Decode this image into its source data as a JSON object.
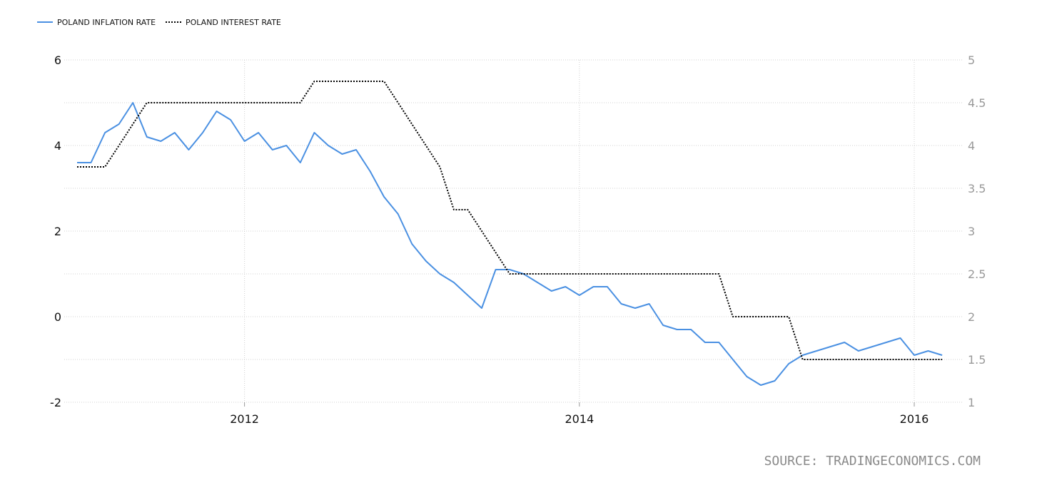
{
  "chart_data": {
    "type": "line",
    "legend_position": "top-left",
    "grid": true,
    "source": "SOURCE: TRADINGECONOMICS.COM",
    "x_ticks": [
      "2012",
      "2014",
      "2016"
    ],
    "left_axis": {
      "range": [
        -2,
        6
      ],
      "ticks": [
        "6",
        "4",
        "2",
        "0",
        "-2"
      ]
    },
    "right_axis": {
      "range": [
        1,
        5
      ],
      "ticks": [
        "5",
        "4.5",
        "4",
        "3.5",
        "3",
        "2.5",
        "2",
        "1.5",
        "1"
      ]
    },
    "series": [
      {
        "name": "POLAND INFLATION RATE",
        "axis": "left",
        "color": "#4a90e2",
        "style": "solid",
        "x": [
          "2011-01",
          "2011-02",
          "2011-03",
          "2011-04",
          "2011-05",
          "2011-06",
          "2011-07",
          "2011-08",
          "2011-09",
          "2011-10",
          "2011-11",
          "2011-12",
          "2012-01",
          "2012-02",
          "2012-03",
          "2012-04",
          "2012-05",
          "2012-06",
          "2012-07",
          "2012-08",
          "2012-09",
          "2012-10",
          "2012-11",
          "2012-12",
          "2013-01",
          "2013-02",
          "2013-03",
          "2013-04",
          "2013-05",
          "2013-06",
          "2013-07",
          "2013-08",
          "2013-09",
          "2013-10",
          "2013-11",
          "2013-12",
          "2014-01",
          "2014-02",
          "2014-03",
          "2014-04",
          "2014-05",
          "2014-06",
          "2014-07",
          "2014-08",
          "2014-09",
          "2014-10",
          "2014-11",
          "2014-12",
          "2015-01",
          "2015-02",
          "2015-03",
          "2015-04",
          "2015-05",
          "2015-06",
          "2015-07",
          "2015-08",
          "2015-09",
          "2015-10",
          "2015-11",
          "2015-12",
          "2016-01",
          "2016-02",
          "2016-03"
        ],
        "values": [
          3.6,
          3.6,
          4.3,
          4.5,
          5.0,
          4.2,
          4.1,
          4.3,
          3.9,
          4.3,
          4.8,
          4.6,
          4.1,
          4.3,
          3.9,
          4.0,
          3.6,
          4.3,
          4.0,
          3.8,
          3.9,
          3.4,
          2.8,
          2.4,
          1.7,
          1.3,
          1.0,
          0.8,
          0.5,
          0.2,
          1.1,
          1.1,
          1.0,
          0.8,
          0.6,
          0.7,
          0.5,
          0.7,
          0.7,
          0.3,
          0.2,
          0.3,
          -0.2,
          -0.3,
          -0.3,
          -0.6,
          -0.6,
          -1.0,
          -1.4,
          -1.6,
          -1.5,
          -1.1,
          -0.9,
          -0.8,
          -0.7,
          -0.6,
          -0.8,
          -0.7,
          -0.6,
          -0.5,
          -0.9,
          -0.8,
          -0.9
        ]
      },
      {
        "name": "POLAND INTEREST RATE",
        "axis": "right",
        "color": "#000000",
        "style": "dotted",
        "x": [
          "2011-01",
          "2011-02",
          "2011-03",
          "2011-04",
          "2011-05",
          "2011-06",
          "2011-07",
          "2011-08",
          "2011-09",
          "2011-10",
          "2011-11",
          "2011-12",
          "2012-01",
          "2012-02",
          "2012-03",
          "2012-04",
          "2012-05",
          "2012-06",
          "2012-07",
          "2012-08",
          "2012-09",
          "2012-10",
          "2012-11",
          "2012-12",
          "2013-01",
          "2013-02",
          "2013-03",
          "2013-04",
          "2013-05",
          "2013-06",
          "2013-07",
          "2013-08",
          "2013-09",
          "2013-10",
          "2013-11",
          "2013-12",
          "2014-01",
          "2014-02",
          "2014-03",
          "2014-04",
          "2014-05",
          "2014-06",
          "2014-07",
          "2014-08",
          "2014-09",
          "2014-10",
          "2014-11",
          "2014-12",
          "2015-01",
          "2015-02",
          "2015-03",
          "2015-04",
          "2015-05",
          "2015-06",
          "2015-07",
          "2015-08",
          "2015-09",
          "2015-10",
          "2015-11",
          "2015-12",
          "2016-01",
          "2016-02",
          "2016-03"
        ],
        "values": [
          3.75,
          3.75,
          3.75,
          4.0,
          4.25,
          4.5,
          4.5,
          4.5,
          4.5,
          4.5,
          4.5,
          4.5,
          4.5,
          4.5,
          4.5,
          4.5,
          4.5,
          4.75,
          4.75,
          4.75,
          4.75,
          4.75,
          4.75,
          4.5,
          4.25,
          4.0,
          3.75,
          3.25,
          3.25,
          3.0,
          2.75,
          2.5,
          2.5,
          2.5,
          2.5,
          2.5,
          2.5,
          2.5,
          2.5,
          2.5,
          2.5,
          2.5,
          2.5,
          2.5,
          2.5,
          2.5,
          2.5,
          2.0,
          2.0,
          2.0,
          2.0,
          2.0,
          1.5,
          1.5,
          1.5,
          1.5,
          1.5,
          1.5,
          1.5,
          1.5,
          1.5,
          1.5,
          1.5
        ]
      }
    ]
  }
}
